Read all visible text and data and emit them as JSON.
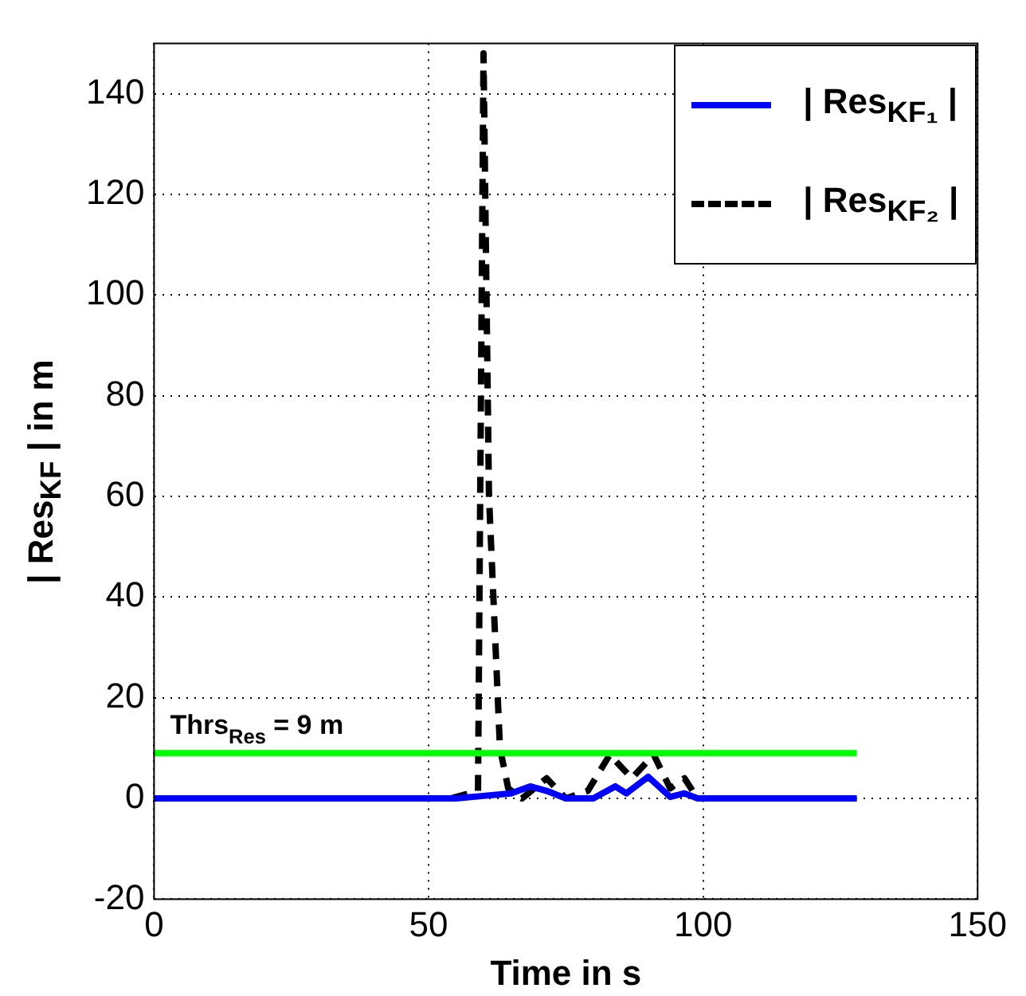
{
  "chart_data": {
    "type": "line",
    "xlabel": "Time in s",
    "ylabel": "| Res$_{KF}$ | in m",
    "xlim": [
      0,
      150
    ],
    "xticks": [
      0,
      50,
      100,
      150
    ],
    "ylim": [
      -20,
      150
    ],
    "yticks": [
      -20,
      0,
      20,
      40,
      60,
      80,
      100,
      120,
      140
    ],
    "grid": true,
    "legend": "top right",
    "marker": "none",
    "series": [
      {
        "name": "| Res$_{KF₁}$ |",
        "color": "#0000ff",
        "line_style": "solid",
        "x": [
          0,
          55,
          60,
          65,
          68.5,
          71.5,
          75,
          80,
          84,
          86,
          90,
          94,
          96.6,
          99,
          128
        ],
        "values": [
          0,
          0,
          0.5,
          1,
          2.4,
          1.5,
          0,
          0,
          2.4,
          1,
          4.3,
          0.3,
          1,
          0,
          0
        ]
      },
      {
        "name": "| Res$_{KF₂}$ |",
        "color": "#000000",
        "line_style": "dashed",
        "x": [
          0,
          54,
          59,
          60,
          61,
          63,
          64.5,
          67,
          71.5,
          75,
          79,
          83,
          87,
          91,
          94,
          96.6,
          99,
          128
        ],
        "values": [
          0,
          0,
          1.5,
          148,
          60,
          10,
          2,
          0,
          4,
          0,
          1.5,
          8.7,
          4,
          8.7,
          2,
          4,
          0,
          0
        ]
      }
    ],
    "ref_lines": [
      {
        "axis": "y",
        "value": 9,
        "label": "Thrs$_{Res}$ = 9 m",
        "color": "#00ff00"
      }
    ]
  }
}
